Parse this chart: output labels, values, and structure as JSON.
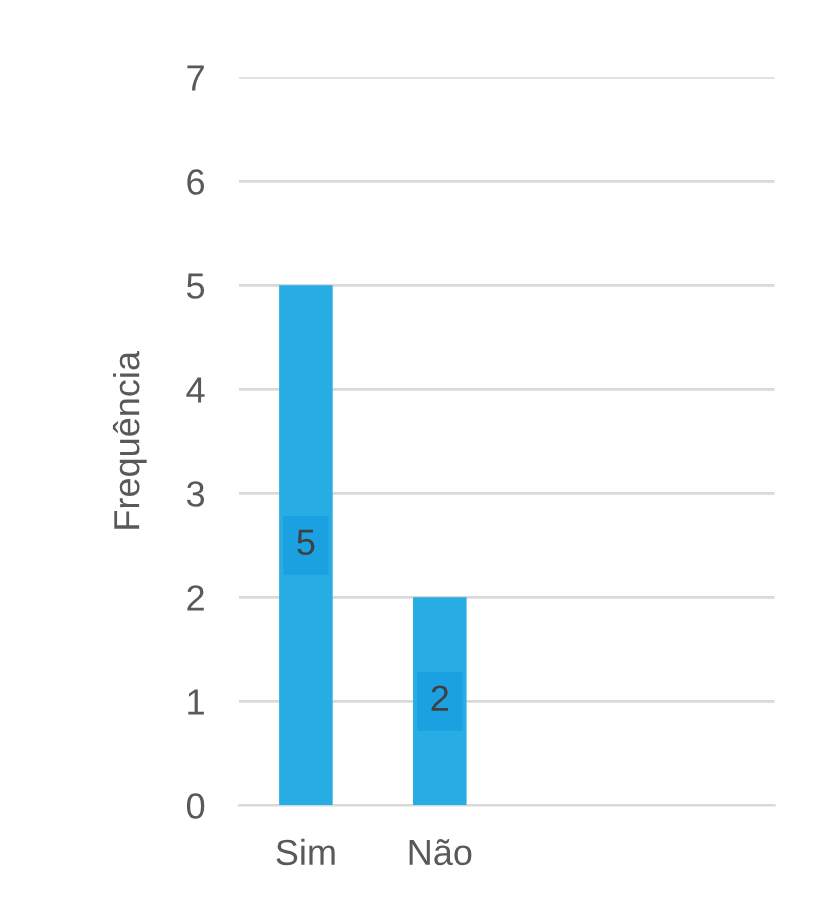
{
  "chart_data": {
    "type": "bar",
    "ylabel": "Frequência",
    "categories": [
      "Sim",
      "Não",
      null,
      null
    ],
    "values": [
      5,
      2,
      null,
      null
    ],
    "color": "#27ade3",
    "ylim": [
      0,
      7
    ],
    "yticks": [
      0,
      1,
      2,
      3,
      4,
      5,
      6,
      7
    ],
    "grid": "y",
    "data_labels": true,
    "legend": false
  }
}
